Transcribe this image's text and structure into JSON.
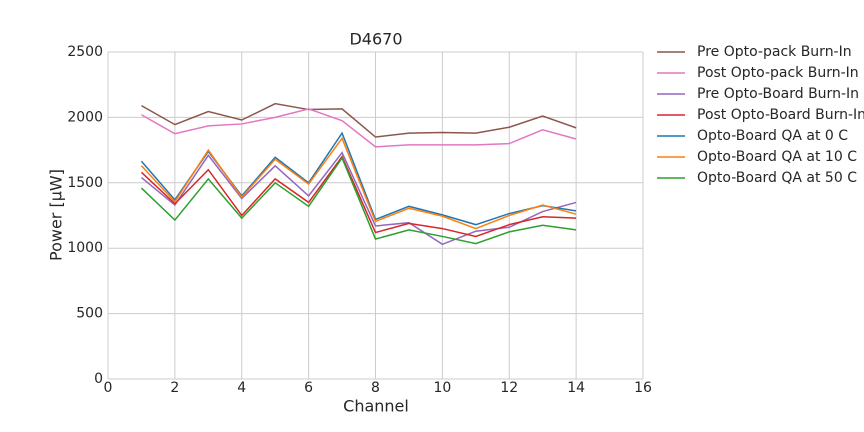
{
  "chart_data": {
    "type": "line",
    "title": "D4670",
    "x_label": "Channel",
    "y_label": "Power [μW]",
    "x": [
      1,
      2,
      3,
      4,
      5,
      6,
      7,
      8,
      9,
      10,
      11,
      12,
      13,
      14
    ],
    "xlim": [
      0,
      16
    ],
    "xticks": [
      0,
      2,
      4,
      6,
      8,
      10,
      12,
      14,
      16
    ],
    "ylim": [
      0,
      2500
    ],
    "yticks": [
      0,
      500,
      1000,
      1500,
      2000,
      2500
    ],
    "grid": true,
    "legend": "outside right",
    "series": [
      {
        "name": "Pre Opto-pack Burn-In",
        "color": "#8c564b",
        "values": [
          2090,
          1945,
          2045,
          1980,
          2105,
          2060,
          2065,
          1850,
          1880,
          1885,
          1880,
          1925,
          2010,
          1920
        ]
      },
      {
        "name": "Post Opto-pack Burn-In",
        "color": "#e377c2",
        "values": [
          2020,
          1875,
          1935,
          1950,
          2000,
          2065,
          1975,
          1775,
          1790,
          1790,
          1790,
          1800,
          1905,
          1835
        ]
      },
      {
        "name": "Pre Opto-Board Burn-In",
        "color": "#9467bd",
        "values": [
          1540,
          1330,
          1710,
          1380,
          1630,
          1400,
          1730,
          1170,
          1195,
          1030,
          1130,
          1160,
          1280,
          1350
        ]
      },
      {
        "name": "Post Opto-Board Burn-In",
        "color": "#d62728",
        "values": [
          1580,
          1340,
          1600,
          1250,
          1530,
          1350,
          1700,
          1120,
          1190,
          1150,
          1090,
          1180,
          1240,
          1230
        ]
      },
      {
        "name": "Opto-Board QA at 0 C",
        "color": "#1f77b4",
        "values": [
          1665,
          1370,
          1740,
          1400,
          1695,
          1500,
          1880,
          1220,
          1320,
          1255,
          1180,
          1265,
          1325,
          1285
        ]
      },
      {
        "name": "Opto-Board QA at 10 C",
        "color": "#ff7f0e",
        "values": [
          1630,
          1355,
          1750,
          1390,
          1680,
          1490,
          1840,
          1205,
          1305,
          1245,
          1150,
          1250,
          1330,
          1260
        ]
      },
      {
        "name": "Opto-Board QA at 50 C",
        "color": "#2ca02c",
        "values": [
          1460,
          1215,
          1530,
          1230,
          1500,
          1320,
          1690,
          1070,
          1140,
          1090,
          1035,
          1125,
          1175,
          1140
        ]
      }
    ]
  }
}
